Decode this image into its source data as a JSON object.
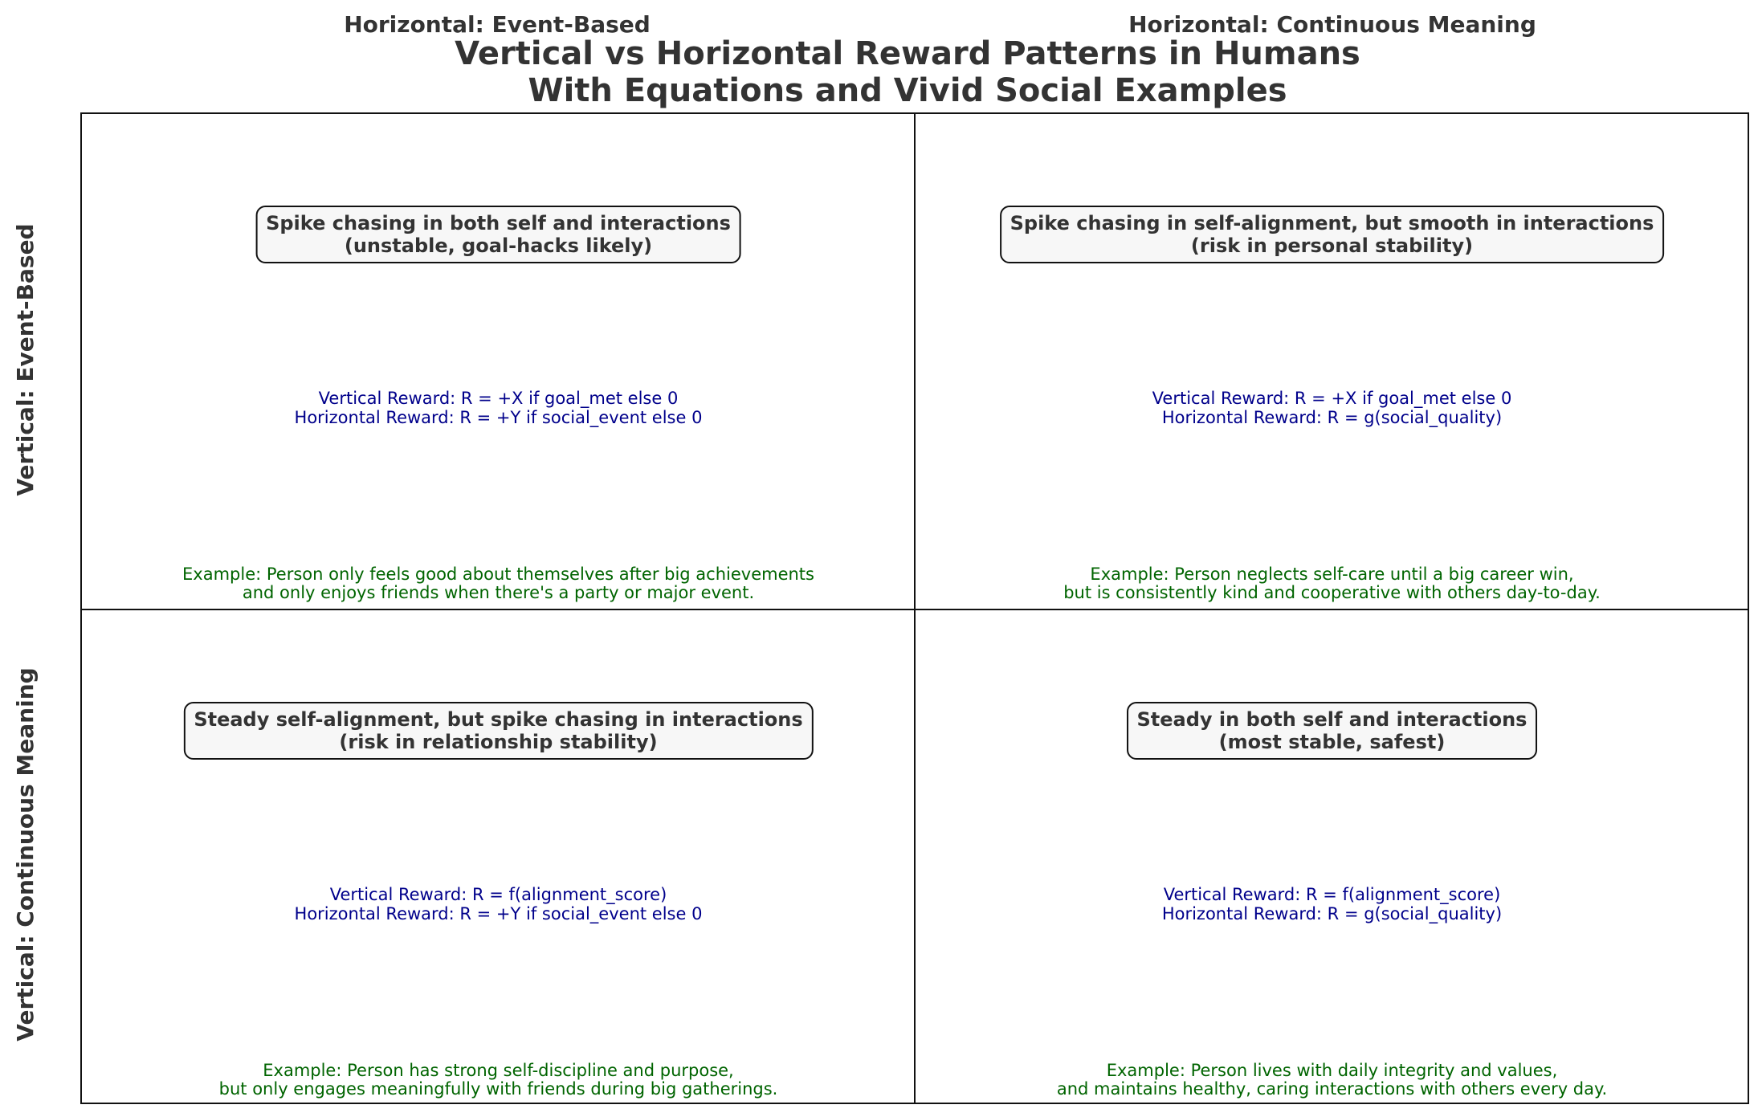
{
  "title": {
    "line1": "Vertical vs Horizontal Reward Patterns in Humans",
    "line2": "With Equations and Vivid Social Examples"
  },
  "column_headers": {
    "left": "Horizontal: Event-Based",
    "right": "Horizontal: Continuous Meaning"
  },
  "row_headers": {
    "top": "Vertical: Event-Based",
    "bottom": "Vertical: Continuous Meaning"
  },
  "quadrants": {
    "top_left": {
      "label_line1": "Spike chasing in both self and interactions",
      "label_line2": "(unstable, goal-hacks likely)",
      "vertical_equation": "Vertical Reward: R = +X if goal_met else 0",
      "horizontal_equation": "Horizontal Reward: R = +Y if social_event else 0",
      "example_line1": "Example: Person only feels good about themselves after big achievements",
      "example_line2": "and only enjoys friends when there's a party or major event."
    },
    "top_right": {
      "label_line1": "Spike chasing in self-alignment, but smooth in interactions",
      "label_line2": "(risk in personal stability)",
      "vertical_equation": "Vertical Reward: R = +X if goal_met else 0",
      "horizontal_equation": "Horizontal Reward: R = g(social_quality)",
      "example_line1": "Example: Person neglects self-care until a big career win,",
      "example_line2": "but is consistently kind and cooperative with others day-to-day."
    },
    "bottom_left": {
      "label_line1": "Steady self-alignment, but spike chasing in interactions",
      "label_line2": "(risk in relationship stability)",
      "vertical_equation": "Vertical Reward: R = f(alignment_score)",
      "horizontal_equation": "Horizontal Reward: R = +Y if social_event else 0",
      "example_line1": "Example: Person has strong self-discipline and purpose,",
      "example_line2": "but only engages meaningfully with friends during big gatherings."
    },
    "bottom_right": {
      "label_line1": "Steady in both self and interactions",
      "label_line2": "(most stable, safest)",
      "vertical_equation": "Vertical Reward: R = f(alignment_score)",
      "horizontal_equation": "Horizontal Reward: R = g(social_quality)",
      "example_line1": "Example: Person lives with daily integrity and values,",
      "example_line2": "and maintains healthy, caring interactions with others every day."
    }
  },
  "colors": {
    "text": "#333333",
    "equation": "#00008b",
    "example": "#006400",
    "label_background": "#f7f7f7",
    "border": "#111111"
  }
}
